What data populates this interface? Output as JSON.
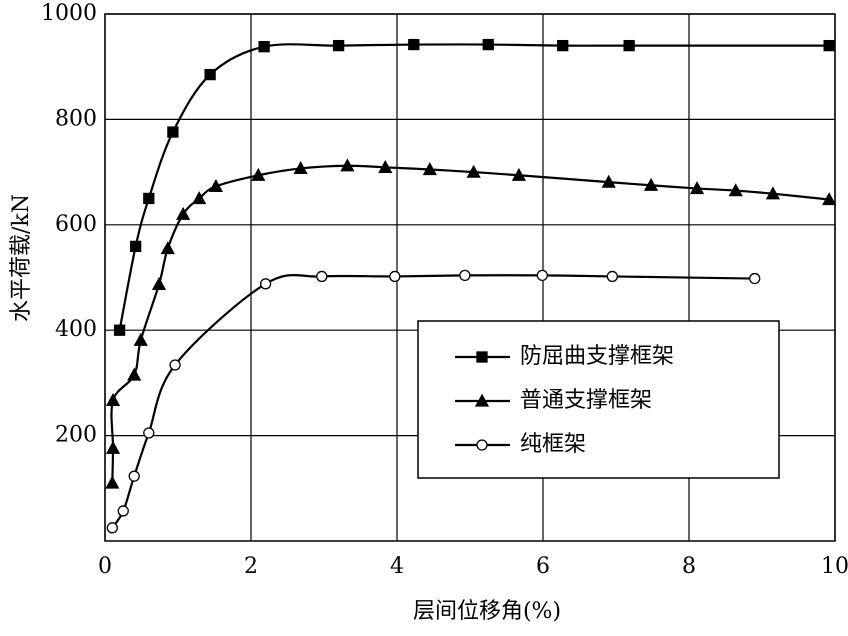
{
  "chart_data": {
    "type": "line",
    "xlabel": "层间位移角(%)",
    "ylabel": "水平荷载/kN",
    "xlim": [
      0,
      10
    ],
    "ylim": [
      0,
      1000
    ],
    "xticks": [
      0,
      2,
      4,
      6,
      8,
      10
    ],
    "yticks": [
      200,
      400,
      600,
      800,
      1000
    ],
    "grid": true,
    "legend": "lower right",
    "series": [
      {
        "name": "防屈曲支撑框架",
        "color": "#000000",
        "marker": "square",
        "marker_fill": "#000000",
        "x": [
          0.2,
          0.42,
          0.6,
          0.93,
          1.44,
          2.18,
          3.2,
          4.23,
          5.25,
          6.27,
          7.18,
          9.92
        ],
        "values": [
          400,
          559,
          650,
          776,
          885,
          938,
          940,
          942,
          942,
          940,
          940,
          940
        ]
      },
      {
        "name": "普通支撑框架",
        "color": "#000000",
        "marker": "triangle",
        "marker_fill": "#000000",
        "x": [
          0.1,
          0.11,
          0.11,
          0.4,
          0.49,
          0.74,
          0.86,
          1.07,
          1.29,
          1.52,
          2.1,
          2.68,
          3.32,
          3.84,
          4.45,
          5.05,
          5.67,
          6.9,
          7.48,
          8.11,
          8.64,
          9.15,
          9.92
        ],
        "values": [
          110,
          176,
          267,
          315,
          381,
          487,
          555,
          620,
          650,
          673,
          694,
          707,
          712,
          709,
          705,
          700,
          694,
          681,
          675,
          669,
          665,
          659,
          648
        ]
      },
      {
        "name": "纯框架",
        "color": "#000000",
        "marker": "circle",
        "marker_fill": "#ffffff",
        "x": [
          0.1,
          0.25,
          0.4,
          0.6,
          0.96,
          2.2,
          2.97,
          3.97,
          4.93,
          5.99,
          6.95,
          8.9
        ],
        "values": [
          25,
          57,
          123,
          205,
          334,
          488,
          502,
          502,
          504,
          504,
          502,
          498
        ]
      }
    ]
  }
}
